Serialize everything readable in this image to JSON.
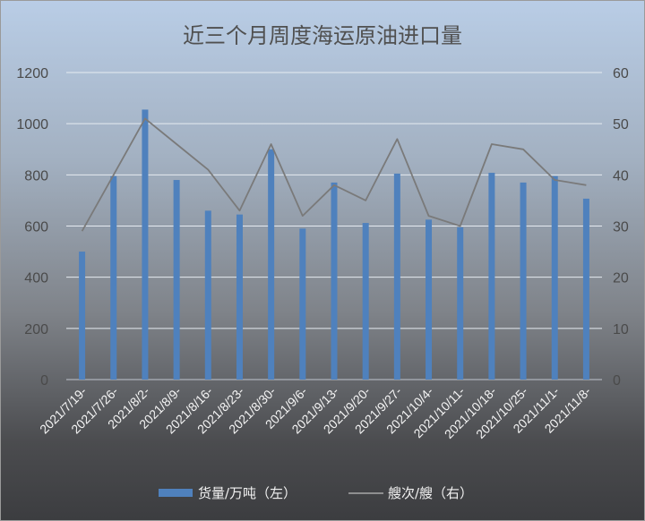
{
  "chart_data": {
    "type": "bar",
    "title": "近三个月周度海运原油进口量",
    "categories": [
      "2021/7/19-",
      "2021/7/26-",
      "2021/8/2-",
      "2021/8/9-",
      "2021/8/16-",
      "2021/8/23-",
      "2021/8/30-",
      "2021/9/6-",
      "2021/9/13-",
      "2021/9/20-",
      "2021/9/27-",
      "2021/10/4-",
      "2021/10/11-",
      "2021/10/18-",
      "2021/10/25-",
      "2021/11/1-",
      "2021/11/8-"
    ],
    "series": [
      {
        "name": "货量/万吨（左）",
        "type": "bar",
        "axis": "left",
        "color": "#4f81bd",
        "values": [
          500,
          795,
          1055,
          780,
          660,
          645,
          900,
          590,
          770,
          612,
          805,
          625,
          595,
          808,
          770,
          795,
          707
        ]
      },
      {
        "name": "艘次/艘（右）",
        "type": "line",
        "axis": "right",
        "color": "#7a7a7a",
        "values": [
          29,
          40,
          51,
          46,
          41,
          33,
          46,
          32,
          38,
          35,
          47,
          32,
          30,
          46,
          45,
          39,
          38
        ]
      }
    ],
    "ylim_left": [
      0,
      1200
    ],
    "ylim_right": [
      0,
      60
    ],
    "yticks_left": [
      "0",
      "200",
      "400",
      "600",
      "800",
      "1000",
      "1200"
    ],
    "yticks_right": [
      "0",
      "10",
      "20",
      "30",
      "40",
      "50",
      "60"
    ],
    "grid": true,
    "legend_position": "bottom"
  }
}
